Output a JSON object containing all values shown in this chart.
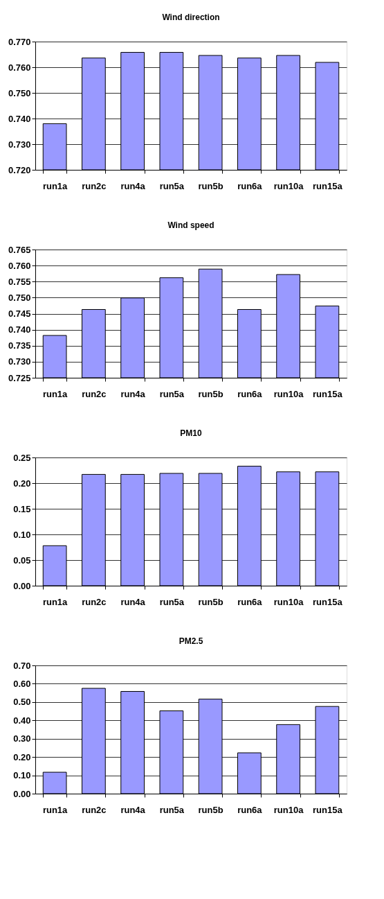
{
  "chart_data": [
    {
      "type": "bar",
      "title": "Wind direction",
      "categories": [
        "run1a",
        "run2c",
        "run4a",
        "run5a",
        "run5b",
        "run6a",
        "run10a",
        "run15a"
      ],
      "values": [
        0.738,
        0.7636,
        0.7658,
        0.7658,
        0.7646,
        0.7636,
        0.7646,
        0.7619
      ],
      "color": "#9999ff",
      "ylim": [
        0.72,
        0.77
      ],
      "yticks": [
        {
          "value": 0.72,
          "label": "0.720"
        },
        {
          "value": 0.73,
          "label": "0.730"
        },
        {
          "value": 0.74,
          "label": "0.740"
        },
        {
          "value": 0.75,
          "label": "0.750"
        },
        {
          "value": 0.76,
          "label": "0.760"
        },
        {
          "value": 0.77,
          "label": "0.770"
        }
      ],
      "grid": "y"
    },
    {
      "type": "bar",
      "title": "Wind speed",
      "categories": [
        "run1a",
        "run2c",
        "run4a",
        "run5a",
        "run5b",
        "run6a",
        "run10a",
        "run15a"
      ],
      "values": [
        0.7382,
        0.7463,
        0.7499,
        0.7562,
        0.7589,
        0.7463,
        0.7572,
        0.7474
      ],
      "color": "#9999ff",
      "ylim": [
        0.725,
        0.765
      ],
      "yticks": [
        0.725,
        {
          "value": 0.73,
          "label": "0.730"
        },
        0.735,
        {
          "value": 0.74,
          "label": "0.740"
        },
        0.745,
        {
          "value": 0.75,
          "label": "0.750"
        },
        0.755,
        {
          "value": 0.76,
          "label": "0.760"
        },
        0.765
      ],
      "grid": "y"
    },
    {
      "type": "bar",
      "title": "PM10",
      "categories": [
        "run1a",
        "run2c",
        "run4a",
        "run5a",
        "run5b",
        "run6a",
        "run10a",
        "run15a"
      ],
      "values": [
        0.078,
        0.217,
        0.217,
        0.219,
        0.219,
        0.233,
        0.222,
        0.222
      ],
      "color": "#9999ff",
      "ylim": [
        0,
        0.25
      ],
      "yticks": [
        {
          "value": 0,
          "label": "0.00"
        },
        0.05,
        {
          "value": 0.1,
          "label": "0.10"
        },
        0.15,
        {
          "value": 0.2,
          "label": "0.20"
        },
        0.25
      ],
      "grid": "y"
    },
    {
      "type": "bar",
      "title": "PM2.5",
      "categories": [
        "run1a",
        "run2c",
        "run4a",
        "run5a",
        "run5b",
        "run6a",
        "run10a",
        "run15a"
      ],
      "values": [
        0.117,
        0.575,
        0.558,
        0.452,
        0.516,
        0.223,
        0.377,
        0.476
      ],
      "color": "#9999ff",
      "ylim": [
        0,
        0.7
      ],
      "yticks": [
        {
          "value": 0,
          "label": "0.00"
        },
        {
          "value": 0.1,
          "label": "0.10"
        },
        {
          "value": 0.2,
          "label": "0.20"
        },
        {
          "value": 0.3,
          "label": "0.30"
        },
        {
          "value": 0.4,
          "label": "0.40"
        },
        {
          "value": 0.5,
          "label": "0.50"
        },
        {
          "value": 0.6,
          "label": "0.60"
        },
        {
          "value": 0.7,
          "label": "0.70"
        }
      ],
      "grid": "y"
    }
  ]
}
